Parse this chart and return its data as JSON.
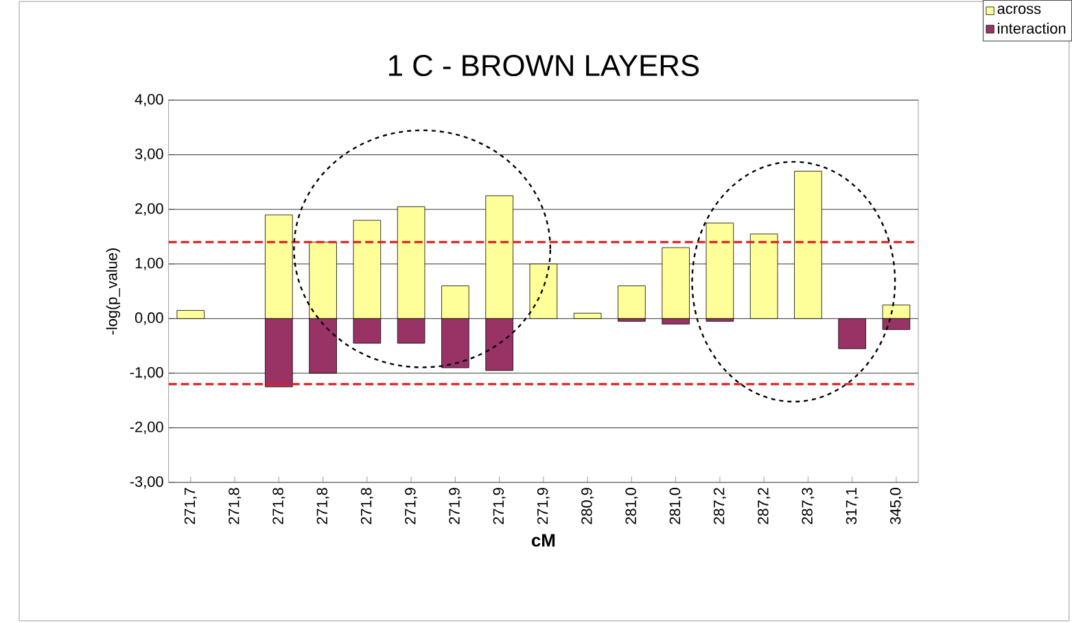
{
  "chart_data": {
    "type": "bar",
    "title": "1 C - BROWN LAYERS",
    "xlabel": "cM",
    "ylabel": "-log(p_value)",
    "categories": [
      "271,7",
      "271,8",
      "271,8",
      "271,8",
      "271,8",
      "271,9",
      "271,9",
      "271,9",
      "271,9",
      "280,9",
      "281,0",
      "281,0",
      "287,2",
      "287,2",
      "287,3",
      "317,1",
      "345,0"
    ],
    "series": [
      {
        "name": "across",
        "color": "#ffff99",
        "values": [
          0.15,
          null,
          1.9,
          1.4,
          1.8,
          2.05,
          0.6,
          2.25,
          1.0,
          0.1,
          0.6,
          1.3,
          1.75,
          1.55,
          2.7,
          null,
          0.25
        ]
      },
      {
        "name": "interaction",
        "color": "#993366",
        "values": [
          null,
          null,
          -1.25,
          -1.0,
          -0.45,
          -0.45,
          -0.9,
          -0.95,
          null,
          null,
          -0.05,
          -0.1,
          -0.05,
          null,
          null,
          -0.55,
          -0.2
        ]
      }
    ],
    "ylim": [
      -3,
      4
    ],
    "yticks": [
      {
        "value": -3,
        "label": "-3,00"
      },
      {
        "value": -2,
        "label": "-2,00"
      },
      {
        "value": -1,
        "label": "-1,00"
      },
      {
        "value": 0,
        "label": "0,00"
      },
      {
        "value": 1,
        "label": "1,00"
      },
      {
        "value": 2,
        "label": "2,00"
      },
      {
        "value": 3,
        "label": "3,00"
      },
      {
        "value": 4,
        "label": "4,00"
      }
    ],
    "ref_lines": [
      {
        "axis": "y",
        "value": 1.4,
        "color": "#e02020",
        "line_style": "dashed"
      },
      {
        "axis": "y",
        "value": -1.2,
        "color": "#e02020",
        "line_style": "dashed"
      }
    ],
    "grid": "y",
    "legend": "top right"
  }
}
